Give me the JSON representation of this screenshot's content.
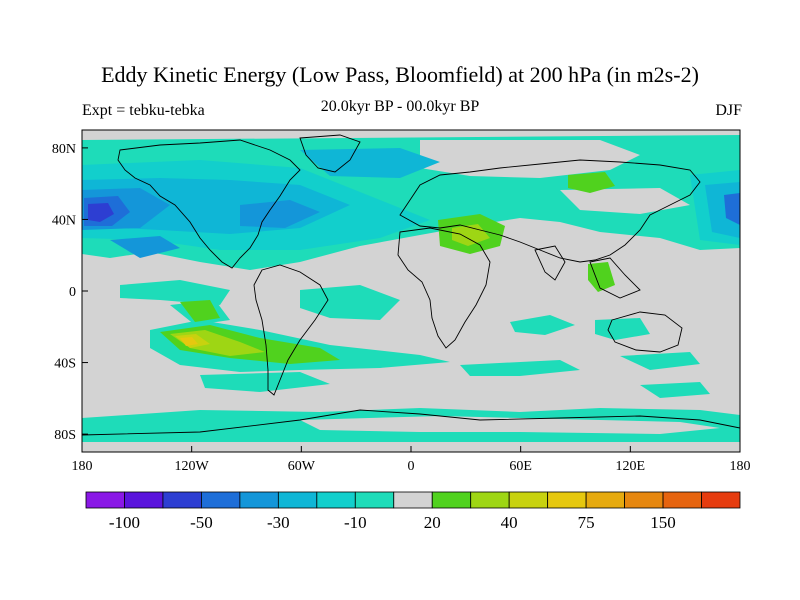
{
  "title": "Eddy Kinetic Energy (Low Pass, Bloomfield) at 200 hPa (in m2s-2)",
  "subtitle_left": "Expt = tebku-tebka",
  "subtitle_center": "20.0kyr BP - 00.0kyr BP",
  "subtitle_right": "DJF",
  "map": {
    "projection": "cylindrical-equidistant",
    "lon_range": [
      -180,
      180
    ],
    "lat_range": [
      -90,
      90
    ],
    "ocean_neutral_color": "#d3d3d3",
    "lon_ticks": [
      {
        "value": -180,
        "label": "180"
      },
      {
        "value": -120,
        "label": "120W"
      },
      {
        "value": -60,
        "label": "60W"
      },
      {
        "value": 0,
        "label": "0"
      },
      {
        "value": 60,
        "label": "60E"
      },
      {
        "value": 120,
        "label": "120E"
      },
      {
        "value": 180,
        "label": "180"
      }
    ],
    "lat_ticks": [
      {
        "value": 80,
        "label": "80N"
      },
      {
        "value": 40,
        "label": "40N"
      },
      {
        "value": 0,
        "label": "0"
      },
      {
        "value": -40,
        "label": "40S"
      },
      {
        "value": -80,
        "label": "80S"
      }
    ]
  },
  "colorbar": {
    "colors": [
      "#8a18e6",
      "#5a14dc",
      "#2d3ed2",
      "#1e6ed8",
      "#1496d9",
      "#0fb6d6",
      "#12cfcc",
      "#1edcb9",
      "#d3d3d3",
      "#50d21e",
      "#9ed614",
      "#c8d20f",
      "#e6c80f",
      "#e6aa0f",
      "#e6870f",
      "#e6640f",
      "#e63c0f"
    ],
    "labels": [
      {
        "after_box": 1,
        "text": "-100"
      },
      {
        "after_box": 3,
        "text": "-50"
      },
      {
        "after_box": 5,
        "text": "-30"
      },
      {
        "after_box": 7,
        "text": "-10"
      },
      {
        "after_box": 9,
        "text": "20"
      },
      {
        "after_box": 11,
        "text": "40"
      },
      {
        "after_box": 13,
        "text": "75"
      },
      {
        "after_box": 15,
        "text": "150"
      }
    ]
  }
}
